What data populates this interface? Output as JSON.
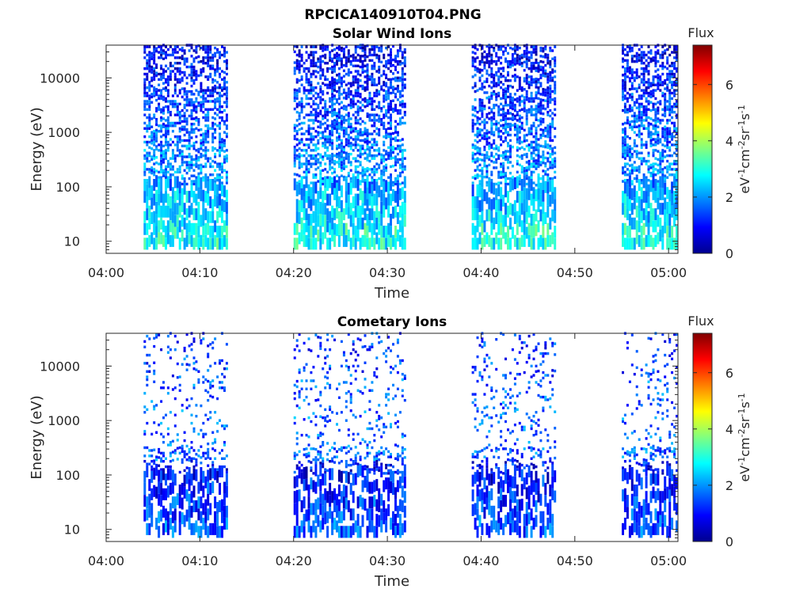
{
  "figure": {
    "title": "RPCICA140910T04.PNG"
  },
  "time_ticks": [
    "04:00",
    "04:10",
    "04:20",
    "04:30",
    "04:40",
    "04:50",
    "05:00"
  ],
  "energy_ticks": [
    "10",
    "100",
    "1000",
    "10000"
  ],
  "colorbar": {
    "label": "Flux",
    "ticks": [
      "0",
      "2",
      "4",
      "6"
    ],
    "range": [
      0,
      7.4
    ],
    "colormap": "jet",
    "units": {
      "e": "eV",
      "sup1": "-1",
      "c": "cm",
      "sup2": "-2",
      "s1": "sr",
      "sup3": "-1",
      "s2": "s",
      "sup4": "-1"
    }
  },
  "chart_data": [
    {
      "type": "heatmap",
      "title": "Solar Wind Ions",
      "xlabel": "Time",
      "ylabel": "Energy (eV)",
      "xlim": [
        "04:00",
        "05:01"
      ],
      "ylim": [
        6,
        40000
      ],
      "yscale": "log",
      "grid": false,
      "colorscale_label": "Flux",
      "clim": [
        0,
        7.4
      ],
      "active_intervals": [
        [
          "04:04",
          "04:13"
        ],
        [
          "04:20",
          "04:32"
        ],
        [
          "04:39",
          "04:48"
        ],
        [
          "04:55",
          "05:01"
        ]
      ],
      "flux_profile": [
        {
          "energy": 10,
          "flux": 2.9
        },
        {
          "energy": 20,
          "flux": 2.5
        },
        {
          "energy": 40,
          "flux": 2.3
        },
        {
          "energy": 100,
          "flux": 2.0
        },
        {
          "energy": 300,
          "flux": 1.9
        },
        {
          "energy": 1000,
          "flux": 1.6
        },
        {
          "energy": 3000,
          "flux": 1.4
        },
        {
          "energy": 10000,
          "flux": 1.1
        },
        {
          "energy": 30000,
          "flux": 0.9
        }
      ]
    },
    {
      "type": "heatmap",
      "title": "Cometary Ions",
      "xlabel": "Time",
      "ylabel": "Energy (eV)",
      "xlim": [
        "04:00",
        "05:01"
      ],
      "ylim": [
        6,
        40000
      ],
      "yscale": "log",
      "grid": false,
      "colorscale_label": "Flux",
      "clim": [
        0,
        7.4
      ],
      "active_intervals": [
        [
          "04:04",
          "04:13"
        ],
        [
          "04:20",
          "04:32"
        ],
        [
          "04:39",
          "04:48"
        ],
        [
          "04:55",
          "05:01"
        ]
      ],
      "flux_profile": [
        {
          "energy": 10,
          "flux": 1.5
        },
        {
          "energy": 20,
          "flux": 1.3
        },
        {
          "energy": 40,
          "flux": 1.2
        },
        {
          "energy": 100,
          "flux": 1.0
        },
        {
          "energy": 300,
          "flux": 1.6
        },
        {
          "energy": 1000,
          "flux": 1.7
        },
        {
          "energy": 3000,
          "flux": 1.6
        },
        {
          "energy": 10000,
          "flux": 1.4
        },
        {
          "energy": 30000,
          "flux": 1.3
        }
      ]
    }
  ]
}
